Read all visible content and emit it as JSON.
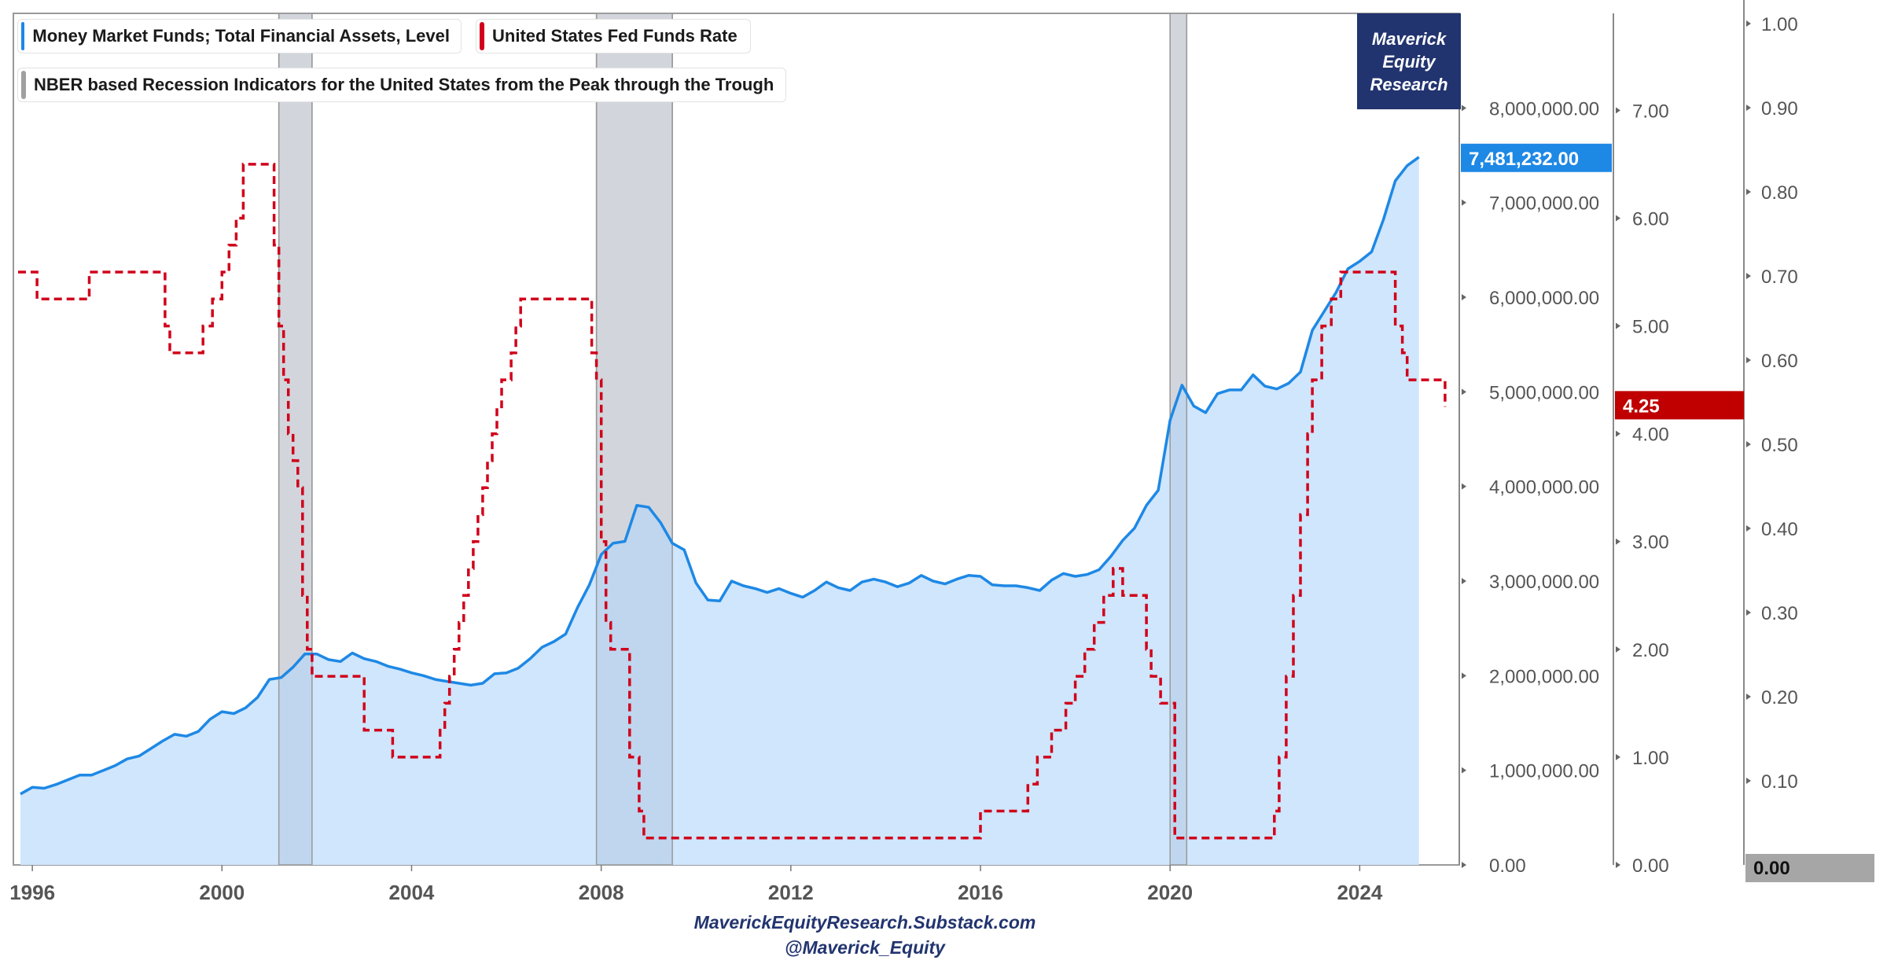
{
  "chart_data": {
    "type": "line",
    "series": [
      {
        "name": "Money Market Funds; Total Financial Assets, Level",
        "axis": "left",
        "color": "#1e88e5",
        "fill": "#cfe6fc",
        "style": "solid-area",
        "x": [
          1995.75,
          1996.0,
          1996.25,
          1996.5,
          1996.75,
          1997.0,
          1997.25,
          1997.5,
          1997.75,
          1998.0,
          1998.25,
          1998.5,
          1998.75,
          1999.0,
          1999.25,
          1999.5,
          1999.75,
          2000.0,
          2000.25,
          2000.5,
          2000.75,
          2001.0,
          2001.25,
          2001.5,
          2001.75,
          2002.0,
          2002.25,
          2002.5,
          2002.75,
          2003.0,
          2003.25,
          2003.5,
          2003.75,
          2004.0,
          2004.25,
          2004.5,
          2004.75,
          2005.0,
          2005.25,
          2005.5,
          2005.75,
          2006.0,
          2006.25,
          2006.5,
          2006.75,
          2007.0,
          2007.25,
          2007.5,
          2007.75,
          2008.0,
          2008.25,
          2008.5,
          2008.75,
          2009.0,
          2009.25,
          2009.5,
          2009.75,
          2010.0,
          2010.25,
          2010.5,
          2010.75,
          2011.0,
          2011.25,
          2011.5,
          2011.75,
          2012.0,
          2012.25,
          2012.5,
          2012.75,
          2013.0,
          2013.25,
          2013.5,
          2013.75,
          2014.0,
          2014.25,
          2014.5,
          2014.75,
          2015.0,
          2015.25,
          2015.5,
          2015.75,
          2016.0,
          2016.25,
          2016.5,
          2016.75,
          2017.0,
          2017.25,
          2017.5,
          2017.75,
          2018.0,
          2018.25,
          2018.5,
          2018.75,
          2019.0,
          2019.25,
          2019.5,
          2019.75,
          2020.0,
          2020.25,
          2020.5,
          2020.75,
          2021.0,
          2021.25,
          2021.5,
          2021.75,
          2022.0,
          2022.25,
          2022.5,
          2022.75,
          2023.0,
          2023.25,
          2023.5,
          2023.75,
          2024.0,
          2024.25,
          2024.5,
          2024.75,
          2025.0,
          2025.25
        ],
        "values": [
          750000,
          820000,
          810000,
          850000,
          900000,
          950000,
          950000,
          1000000,
          1050000,
          1120000,
          1150000,
          1230000,
          1310000,
          1380000,
          1360000,
          1410000,
          1540000,
          1620000,
          1600000,
          1660000,
          1770000,
          1960000,
          1980000,
          2090000,
          2230000,
          2230000,
          2170000,
          2150000,
          2240000,
          2180000,
          2150000,
          2100000,
          2070000,
          2030000,
          2000000,
          1960000,
          1940000,
          1920000,
          1900000,
          1920000,
          2020000,
          2030000,
          2080000,
          2180000,
          2300000,
          2360000,
          2440000,
          2720000,
          2960000,
          3280000,
          3400000,
          3420000,
          3800000,
          3780000,
          3620000,
          3400000,
          3330000,
          2980000,
          2800000,
          2790000,
          3000000,
          2950000,
          2920000,
          2880000,
          2920000,
          2870000,
          2830000,
          2900000,
          2990000,
          2930000,
          2900000,
          2990000,
          3020000,
          2990000,
          2940000,
          2980000,
          3060000,
          3000000,
          2970000,
          3020000,
          3060000,
          3050000,
          2960000,
          2950000,
          2950000,
          2930000,
          2900000,
          3010000,
          3080000,
          3050000,
          3070000,
          3120000,
          3260000,
          3430000,
          3560000,
          3800000,
          3960000,
          4700000,
          5070000,
          4850000,
          4780000,
          4980000,
          5020000,
          5020000,
          5180000,
          5060000,
          5030000,
          5090000,
          5210000,
          5650000,
          5850000,
          6050000,
          6300000,
          6380000,
          6480000,
          6820000,
          7230000,
          7390000,
          7481232
        ]
      },
      {
        "name": "United States Fed Funds Rate",
        "axis": "right",
        "color": "#d0021b",
        "style": "dashed-step",
        "x": [
          1995.7,
          1996.0,
          1996.1,
          1996.2,
          1997.1,
          1997.2,
          1998.7,
          1998.8,
          1998.9,
          1999.5,
          1999.6,
          1999.8,
          2000.0,
          2000.15,
          2000.3,
          2000.45,
          2001.0,
          2001.1,
          2001.2,
          2001.3,
          2001.4,
          2001.5,
          2001.6,
          2001.7,
          2001.8,
          2001.9,
          2002.9,
          2003.0,
          2003.5,
          2003.6,
          2004.5,
          2004.6,
          2004.7,
          2004.8,
          2004.9,
          2005.0,
          2005.1,
          2005.2,
          2005.3,
          2005.4,
          2005.5,
          2005.6,
          2005.7,
          2005.8,
          2005.9,
          2006.0,
          2006.1,
          2006.2,
          2006.3,
          2006.45,
          2007.7,
          2007.8,
          2007.9,
          2008.0,
          2008.1,
          2008.2,
          2008.3,
          2008.4,
          2008.6,
          2008.8,
          2008.9,
          2009.0,
          2015.9,
          2016.0,
          2016.9,
          2017.0,
          2017.2,
          2017.5,
          2017.8,
          2018.0,
          2018.2,
          2018.4,
          2018.6,
          2018.8,
          2019.0,
          2019.5,
          2019.6,
          2019.8,
          2020.1,
          2020.2,
          2022.0,
          2022.2,
          2022.3,
          2022.45,
          2022.6,
          2022.75,
          2022.9,
          2023.0,
          2023.2,
          2023.4,
          2023.6,
          2024.6,
          2024.75,
          2024.9,
          2025.0,
          2025.7,
          2025.8
        ],
        "values": [
          5.5,
          5.5,
          5.25,
          5.25,
          5.25,
          5.5,
          5.5,
          5.0,
          4.75,
          4.75,
          5.0,
          5.25,
          5.5,
          5.75,
          6.0,
          6.5,
          6.5,
          5.75,
          5.0,
          4.5,
          4.0,
          3.75,
          3.5,
          2.5,
          2.0,
          1.75,
          1.75,
          1.25,
          1.25,
          1.0,
          1.0,
          1.25,
          1.5,
          1.75,
          2.0,
          2.25,
          2.5,
          2.75,
          3.0,
          3.25,
          3.5,
          3.75,
          4.0,
          4.25,
          4.5,
          4.5,
          4.75,
          5.0,
          5.25,
          5.25,
          5.25,
          4.75,
          4.5,
          3.0,
          2.25,
          2.0,
          2.0,
          2.0,
          1.0,
          0.5,
          0.25,
          0.25,
          0.25,
          0.5,
          0.5,
          0.75,
          1.0,
          1.25,
          1.5,
          1.75,
          2.0,
          2.25,
          2.5,
          2.75,
          2.5,
          2.0,
          1.75,
          1.5,
          0.25,
          0.25,
          0.25,
          0.5,
          1.0,
          1.75,
          2.5,
          3.25,
          4.0,
          4.5,
          5.0,
          5.25,
          5.5,
          5.5,
          5.0,
          4.75,
          4.5,
          4.5,
          4.25
        ]
      }
    ],
    "recessions": [
      [
        2001.2,
        2001.9
      ],
      [
        2007.9,
        2009.5
      ],
      [
        2020.0,
        2020.35
      ]
    ],
    "recession_color": "#e6e6e6",
    "legend": [
      {
        "label": "Money Market Funds; Total Financial Assets, Level",
        "color": "#1e88e5"
      },
      {
        "label": "United States Fed Funds Rate",
        "color": "#d0021b"
      },
      {
        "label": "NBER based Recession Indicators for the United States from the Peak through the Trough",
        "color": "#a0a0a0"
      }
    ],
    "xlim": [
      1995.6,
      2026.1
    ],
    "x_ticks": [
      1996,
      2000,
      2004,
      2008,
      2012,
      2016,
      2020,
      2024
    ],
    "x_tick_labels": [
      "1996",
      "2000",
      "2004",
      "2008",
      "2012",
      "2016",
      "2020",
      "2024"
    ],
    "left_axis": {
      "ylim": [
        0,
        9000000
      ],
      "ticks": [
        0,
        1000000,
        2000000,
        3000000,
        4000000,
        5000000,
        6000000,
        7000000,
        8000000
      ],
      "tick_labels": [
        "0.00",
        "1,000,000.00",
        "2,000,000.00",
        "3,000,000.00",
        "4,000,000.00",
        "5,000,000.00",
        "6,000,000.00",
        "7,000,000.00",
        "8,000,000.00"
      ]
    },
    "right_axis": {
      "ylim": [
        0,
        7.9
      ],
      "ticks": [
        0,
        1,
        2,
        3,
        4,
        5,
        6,
        7
      ],
      "tick_labels": [
        "0.00",
        "1.00",
        "2.00",
        "3.00",
        "4.00",
        "5.00",
        "6.00",
        "7.00"
      ]
    },
    "recession_axis": {
      "ylim": [
        0,
        1.0
      ],
      "ticks": [
        0.1,
        0.2,
        0.3,
        0.4,
        0.5,
        0.6,
        0.7,
        0.8,
        0.9,
        1.0
      ],
      "tick_labels": [
        "0.10",
        "0.20",
        "0.30",
        "0.40",
        "0.50",
        "0.60",
        "0.70",
        "0.80",
        "0.90",
        "1.00"
      ]
    },
    "last_values": {
      "mmf": {
        "value": 7481232,
        "label": "7,481,232.00",
        "color": "#1e88e5"
      },
      "rate": {
        "value": 4.25,
        "label": "4.25",
        "color": "#c00000"
      },
      "recession": {
        "value": 0,
        "label": "0.00",
        "color": "#a6a6a6"
      }
    }
  },
  "branding": {
    "line1": "Maverick",
    "line2": "Equity",
    "line3": "Research"
  },
  "footer": {
    "website": "MaverickEquityResearch.Substack.com",
    "handle": "@Maverick_Equity"
  }
}
